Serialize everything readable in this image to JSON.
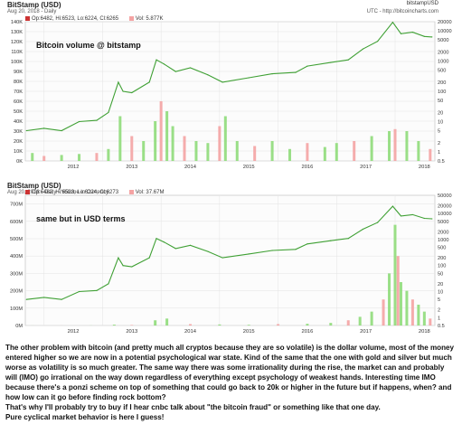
{
  "top_chart": {
    "title": "BitStamp (USD)",
    "subtitle": "Aug 20, 2018 - Daily",
    "source_name": "bitstampUSD",
    "source_url": "UTC - http://bitcoincharts.com",
    "ohlc_legend": "Op:6482, Hi:6523, Lo:6224, Cl:6265",
    "vol_legend": "Vol: 5.877K",
    "annotation": "Bitcoin volume @ bitstamp"
  },
  "bottom_chart": {
    "title": "BitStamp (USD)",
    "subtitle": "Aug 20, 2018 - Daily - Volume in Currency",
    "ohlc_legend": "Op:6482, Hi:6523, Lo:6224, Cl:6273",
    "vol_legend": "Vol: 37.67M",
    "annotation": "same but in USD terms"
  },
  "colors": {
    "price_line": "#3fa034",
    "volume_up": "#8fdb7a",
    "volume_down": "#f4a3a3",
    "ohlc_swatch": "#cc3333",
    "vol_swatch": "#f4a3a3",
    "grid": "#e3e3e3"
  },
  "chart_data": [
    {
      "type": "bar",
      "title": "BitStamp (USD)",
      "x_tick_labels": [
        "2012",
        "2013",
        "2014",
        "2015",
        "2016",
        "2017",
        "2018"
      ],
      "left_axis_ticks": [
        "0K",
        "10K",
        "20K",
        "30K",
        "40K",
        "50K",
        "60K",
        "70K",
        "80K",
        "90K",
        "100K",
        "110K",
        "120K",
        "130K",
        "140K"
      ],
      "left_axis_range": [
        0,
        140000
      ],
      "right_axis_ticks": [
        "0.5",
        "1",
        "2",
        "5",
        "10",
        "20",
        "50",
        "100",
        "200",
        "500",
        "1000",
        "2000",
        "5000",
        "10000",
        "20000"
      ],
      "right_axis_scale": "log",
      "grid": true,
      "series": [
        {
          "name": "Price",
          "kind": "line",
          "x": [
            2011.7,
            2012.0,
            2012.3,
            2012.6,
            2012.9,
            2013.1,
            2013.27,
            2013.35,
            2013.5,
            2013.8,
            2013.92,
            2014.05,
            2014.25,
            2014.5,
            2014.8,
            2015.05,
            2015.5,
            2015.9,
            2016.3,
            2016.5,
            2016.9,
            2017.2,
            2017.45,
            2017.7,
            2017.96,
            2018.1,
            2018.3,
            2018.5,
            2018.63
          ],
          "values": [
            5,
            6,
            5,
            10,
            11,
            20,
            200,
            100,
            90,
            200,
            1100,
            800,
            450,
            600,
            350,
            200,
            280,
            380,
            420,
            680,
            900,
            1100,
            2500,
            4500,
            19000,
            8000,
            9000,
            6500,
            6265
          ]
        },
        {
          "name": "Vol",
          "kind": "bar",
          "x": [
            2011.8,
            2012.0,
            2012.3,
            2012.6,
            2012.9,
            2013.1,
            2013.3,
            2013.5,
            2013.7,
            2013.9,
            2014.0,
            2014.1,
            2014.2,
            2014.4,
            2014.6,
            2014.8,
            2015.0,
            2015.1,
            2015.3,
            2015.6,
            2015.9,
            2016.2,
            2016.5,
            2016.8,
            2017.0,
            2017.3,
            2017.6,
            2017.9,
            2018.0,
            2018.2,
            2018.4,
            2018.6
          ],
          "values": [
            8000,
            5000,
            6000,
            7000,
            8000,
            12000,
            45000,
            25000,
            20000,
            40000,
            60000,
            50000,
            35000,
            25000,
            20000,
            18000,
            35000,
            45000,
            20000,
            15000,
            20000,
            12000,
            18000,
            14000,
            18000,
            20000,
            25000,
            30000,
            32000,
            30000,
            20000,
            12000
          ]
        }
      ]
    },
    {
      "type": "bar",
      "title": "BitStamp (USD)",
      "x_tick_labels": [
        "2012",
        "2013",
        "2014",
        "2015",
        "2016",
        "2017",
        "2018"
      ],
      "left_axis_ticks": [
        "0M",
        "100M",
        "200M",
        "300M",
        "400M",
        "500M",
        "600M",
        "700M"
      ],
      "left_axis_range": [
        0,
        750000000
      ],
      "right_axis_ticks": [
        "0.5",
        "1",
        "2",
        "5",
        "10",
        "20",
        "50",
        "100",
        "200",
        "500",
        "1000",
        "2000",
        "5000",
        "10000",
        "20000",
        "50000"
      ],
      "right_axis_scale": "log",
      "grid": true,
      "series": [
        {
          "name": "Price",
          "kind": "line",
          "x": [
            2011.7,
            2012.0,
            2012.3,
            2012.6,
            2012.9,
            2013.1,
            2013.27,
            2013.35,
            2013.5,
            2013.8,
            2013.92,
            2014.05,
            2014.25,
            2014.5,
            2014.8,
            2015.05,
            2015.5,
            2015.9,
            2016.3,
            2016.5,
            2016.9,
            2017.2,
            2017.45,
            2017.7,
            2017.96,
            2018.1,
            2018.3,
            2018.5,
            2018.63
          ],
          "values": [
            5,
            6,
            5,
            10,
            11,
            20,
            200,
            100,
            90,
            200,
            1100,
            800,
            450,
            600,
            350,
            200,
            280,
            380,
            420,
            680,
            900,
            1100,
            2500,
            4500,
            19000,
            8000,
            9000,
            6500,
            6273
          ]
        },
        {
          "name": "Vol",
          "kind": "bar",
          "x": [
            2011.8,
            2012.3,
            2012.8,
            2013.2,
            2013.5,
            2013.9,
            2014.1,
            2014.5,
            2015.0,
            2015.5,
            2016.0,
            2016.5,
            2016.9,
            2017.2,
            2017.4,
            2017.6,
            2017.8,
            2017.9,
            2018.0,
            2018.05,
            2018.1,
            2018.2,
            2018.3,
            2018.4,
            2018.5,
            2018.6
          ],
          "values": [
            200000,
            300000,
            500000,
            5000000,
            3000000,
            30000000,
            40000000,
            8000000,
            6000000,
            4000000,
            8000000,
            10000000,
            15000000,
            30000000,
            50000000,
            80000000,
            150000000,
            300000000,
            580000000,
            400000000,
            250000000,
            200000000,
            150000000,
            120000000,
            80000000,
            40000000
          ]
        }
      ]
    }
  ],
  "commentary": [
    "The other problem with bitcoin (and pretty much all cryptos because they are so volatile) is the dollar volume, most of the money entered higher so we are now in a potential psychological war state. Kind of the same that the one with gold and silver but much worse as volatility is so much greater. The same way there was some irrationality during the rise, the market can and probably will (IMO) go irrational on the way down regardless of everything except psychology of weakest hands. Interesting time IMO because there's a ponzi scheme on top of something that could go back to 20k or higher in the future but if happens, when? and how low can it go before finding rock bottom?",
    "That's why I'll probably try to buy if I hear cnbc talk about \"the bitcoin fraud\" or something like that one day.",
    "Pure cyclical market behavior is here I guess!"
  ]
}
